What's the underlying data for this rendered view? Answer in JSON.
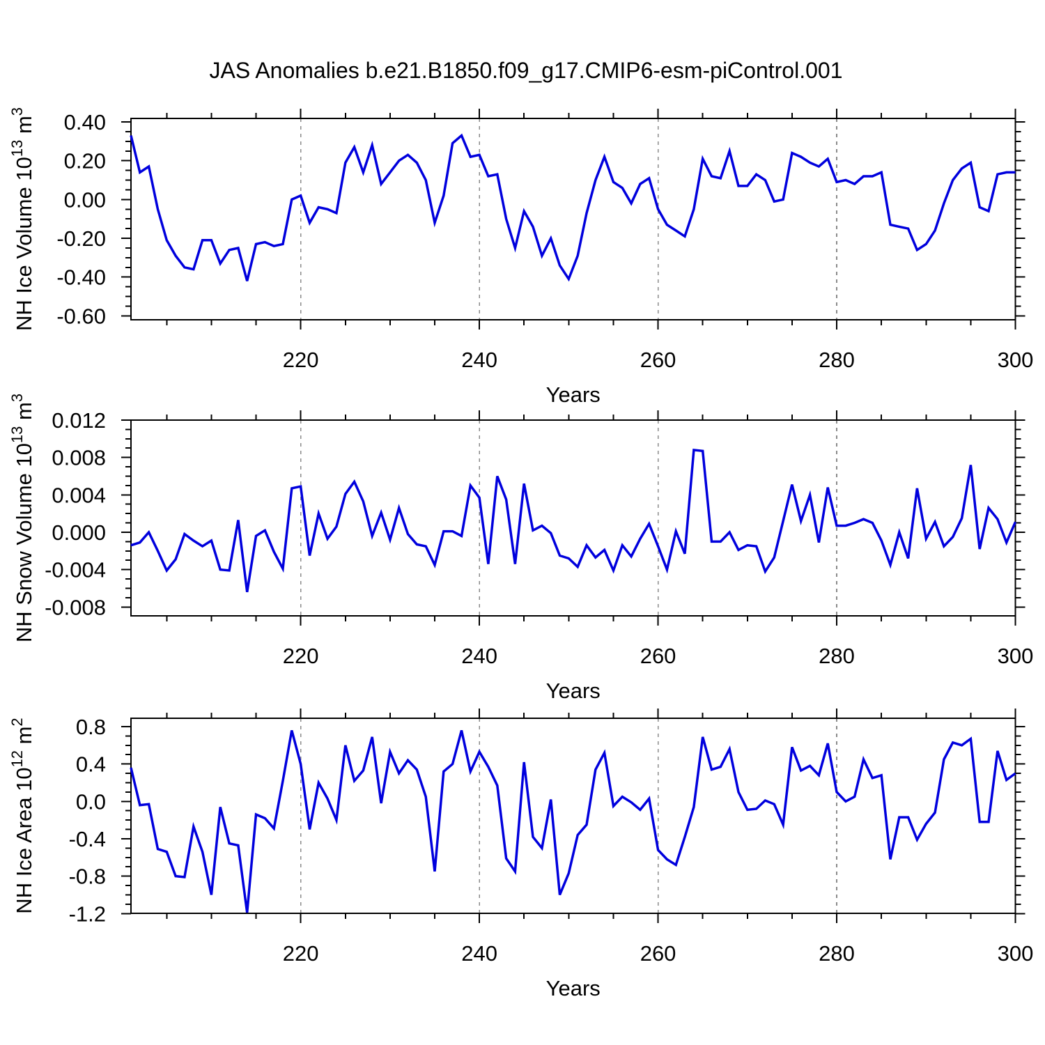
{
  "title": "JAS Anomalies b.e21.B1850.f09_g17.CMIP6-esm-piControl.001",
  "colors": {
    "line": "#0000dd",
    "grid": "#8a8a8a",
    "frame": "#000000",
    "text": "#000000",
    "background": "#ffffff"
  },
  "x_axis": {
    "label": "Years",
    "start": 201,
    "end": 300,
    "major_ticks": [
      220,
      240,
      260,
      280,
      300
    ],
    "major_tick_labels": [
      "220",
      "240",
      "260",
      "280",
      "300"
    ],
    "minor_step": 5,
    "grid_lines": [
      220,
      240,
      260,
      280
    ]
  },
  "chart_data": [
    {
      "type": "line",
      "series_name": "NH Ice Volume anomaly",
      "ylabel_parts": [
        {
          "t": "NH Ice Volume 10"
        },
        {
          "t": "13",
          "sup": true
        },
        {
          "t": " m"
        },
        {
          "t": "3",
          "sup": true
        }
      ],
      "ylim": [
        -0.62,
        0.418
      ],
      "yticks": [
        0.4,
        0.2,
        0.0,
        -0.2,
        -0.4,
        -0.6
      ],
      "ytick_labels": [
        "0.40",
        "0.20",
        "0.00",
        "-0.20",
        "-0.40",
        "-0.60"
      ],
      "y_minor_step": 0.05,
      "x_start_year": 201,
      "values": [
        0.33,
        0.14,
        0.17,
        -0.05,
        -0.21,
        -0.29,
        -0.35,
        -0.36,
        -0.21,
        -0.21,
        -0.33,
        -0.26,
        -0.25,
        -0.42,
        -0.23,
        -0.22,
        -0.24,
        -0.23,
        0.0,
        0.02,
        -0.12,
        -0.04,
        -0.05,
        -0.07,
        0.19,
        0.27,
        0.14,
        0.28,
        0.08,
        0.14,
        0.2,
        0.23,
        0.19,
        0.1,
        -0.12,
        0.02,
        0.29,
        0.33,
        0.22,
        0.23,
        0.12,
        0.13,
        -0.1,
        -0.25,
        -0.06,
        -0.14,
        -0.29,
        -0.2,
        -0.34,
        -0.41,
        -0.29,
        -0.07,
        0.1,
        0.22,
        0.09,
        0.06,
        -0.02,
        0.08,
        0.11,
        -0.05,
        -0.13,
        -0.16,
        -0.19,
        -0.05,
        0.21,
        0.12,
        0.11,
        0.25,
        0.07,
        0.07,
        0.13,
        0.1,
        -0.01,
        0.0,
        0.24,
        0.22,
        0.19,
        0.17,
        0.21,
        0.09,
        0.1,
        0.08,
        0.12,
        0.12,
        0.14,
        -0.13,
        -0.14,
        -0.15,
        -0.26,
        -0.23,
        -0.16,
        -0.02,
        0.1,
        0.16,
        0.19,
        -0.04,
        -0.06,
        0.13,
        0.14,
        0.14
      ]
    },
    {
      "type": "line",
      "series_name": "NH Snow Volume anomaly",
      "ylabel_parts": [
        {
          "t": "NH Snow Volume 10"
        },
        {
          "t": "13",
          "sup": true
        },
        {
          "t": " m"
        },
        {
          "t": "3",
          "sup": true
        }
      ],
      "ylim": [
        -0.00895,
        0.012
      ],
      "yticks": [
        0.012,
        0.008,
        0.004,
        0.0,
        -0.004,
        -0.008
      ],
      "ytick_labels": [
        "0.012",
        "0.008",
        "0.004",
        "0.000",
        "-0.004",
        "-0.008"
      ],
      "y_minor_step": 0.001,
      "x_start_year": 201,
      "values": [
        -0.0014,
        -0.0011,
        0.0,
        -0.002,
        -0.0041,
        -0.0029,
        -0.0002,
        -0.0009,
        -0.0015,
        -0.0009,
        -0.004,
        -0.0041,
        0.0013,
        -0.0064,
        -0.0004,
        0.0002,
        -0.0021,
        -0.0039,
        0.0047,
        0.0049,
        -0.0025,
        0.002,
        -0.0007,
        0.0006,
        0.0041,
        0.0054,
        0.0033,
        -0.0004,
        0.0021,
        -0.0008,
        0.0026,
        -0.0002,
        -0.0013,
        -0.0015,
        -0.0035,
        0.0001,
        0.0001,
        -0.0004,
        0.005,
        0.0037,
        -0.0034,
        0.006,
        0.0035,
        -0.0034,
        0.0052,
        0.0002,
        0.0007,
        -0.0001,
        -0.0025,
        -0.0028,
        -0.0037,
        -0.0014,
        -0.0027,
        -0.0019,
        -0.0041,
        -0.0014,
        -0.0026,
        -0.0007,
        0.0009,
        -0.0015,
        -0.004,
        0.0001,
        -0.0023,
        0.0088,
        0.0087,
        -0.001,
        -0.001,
        0.0,
        -0.0019,
        -0.0014,
        -0.0015,
        -0.0042,
        -0.0027,
        0.0012,
        0.0051,
        0.0012,
        0.004,
        -0.0011,
        0.0048,
        0.0007,
        0.0007,
        0.001,
        0.0014,
        0.001,
        -0.0009,
        -0.0035,
        0.0,
        -0.0028,
        0.0047,
        -0.0007,
        0.0011,
        -0.0015,
        -0.0005,
        0.0015,
        0.0072,
        -0.0018,
        0.0026,
        0.0014,
        -0.0011,
        0.0011
      ]
    },
    {
      "type": "line",
      "series_name": "NH Ice Area anomaly",
      "ylabel_parts": [
        {
          "t": "NH Ice Area 10"
        },
        {
          "t": "12",
          "sup": true
        },
        {
          "t": " m"
        },
        {
          "t": "2",
          "sup": true
        }
      ],
      "ylim": [
        -1.198,
        0.8895
      ],
      "yticks": [
        0.8,
        0.4,
        0.0,
        -0.4,
        -0.8,
        -1.2
      ],
      "ytick_labels": [
        "0.8",
        "0.4",
        "0.0",
        "-0.4",
        "-0.8",
        "-1.2"
      ],
      "y_minor_step": 0.1,
      "x_start_year": 201,
      "values": [
        0.36,
        -0.04,
        -0.03,
        -0.51,
        -0.54,
        -0.8,
        -0.81,
        -0.27,
        -0.54,
        -1.0,
        -0.06,
        -0.45,
        -0.47,
        -1.19,
        -0.14,
        -0.18,
        -0.29,
        0.22,
        0.76,
        0.4,
        -0.3,
        0.2,
        0.03,
        -0.2,
        0.6,
        0.22,
        0.33,
        0.69,
        -0.02,
        0.53,
        0.3,
        0.44,
        0.34,
        0.05,
        -0.75,
        0.32,
        0.4,
        0.76,
        0.32,
        0.53,
        0.37,
        0.17,
        -0.61,
        -0.75,
        0.42,
        -0.38,
        -0.5,
        0.02,
        -1.0,
        -0.77,
        -0.36,
        -0.25,
        0.34,
        0.52,
        -0.05,
        0.05,
        -0.01,
        -0.09,
        0.03,
        -0.52,
        -0.62,
        -0.68,
        -0.38,
        -0.06,
        0.69,
        0.34,
        0.37,
        0.56,
        0.1,
        -0.09,
        -0.08,
        0.01,
        -0.03,
        -0.25,
        0.58,
        0.33,
        0.38,
        0.28,
        0.62,
        0.1,
        0.0,
        0.05,
        0.45,
        0.25,
        0.28,
        -0.62,
        -0.17,
        -0.17,
        -0.41,
        -0.24,
        -0.12,
        0.45,
        0.63,
        0.6,
        0.67,
        -0.22,
        -0.22,
        0.54,
        0.23,
        0.3
      ]
    }
  ]
}
